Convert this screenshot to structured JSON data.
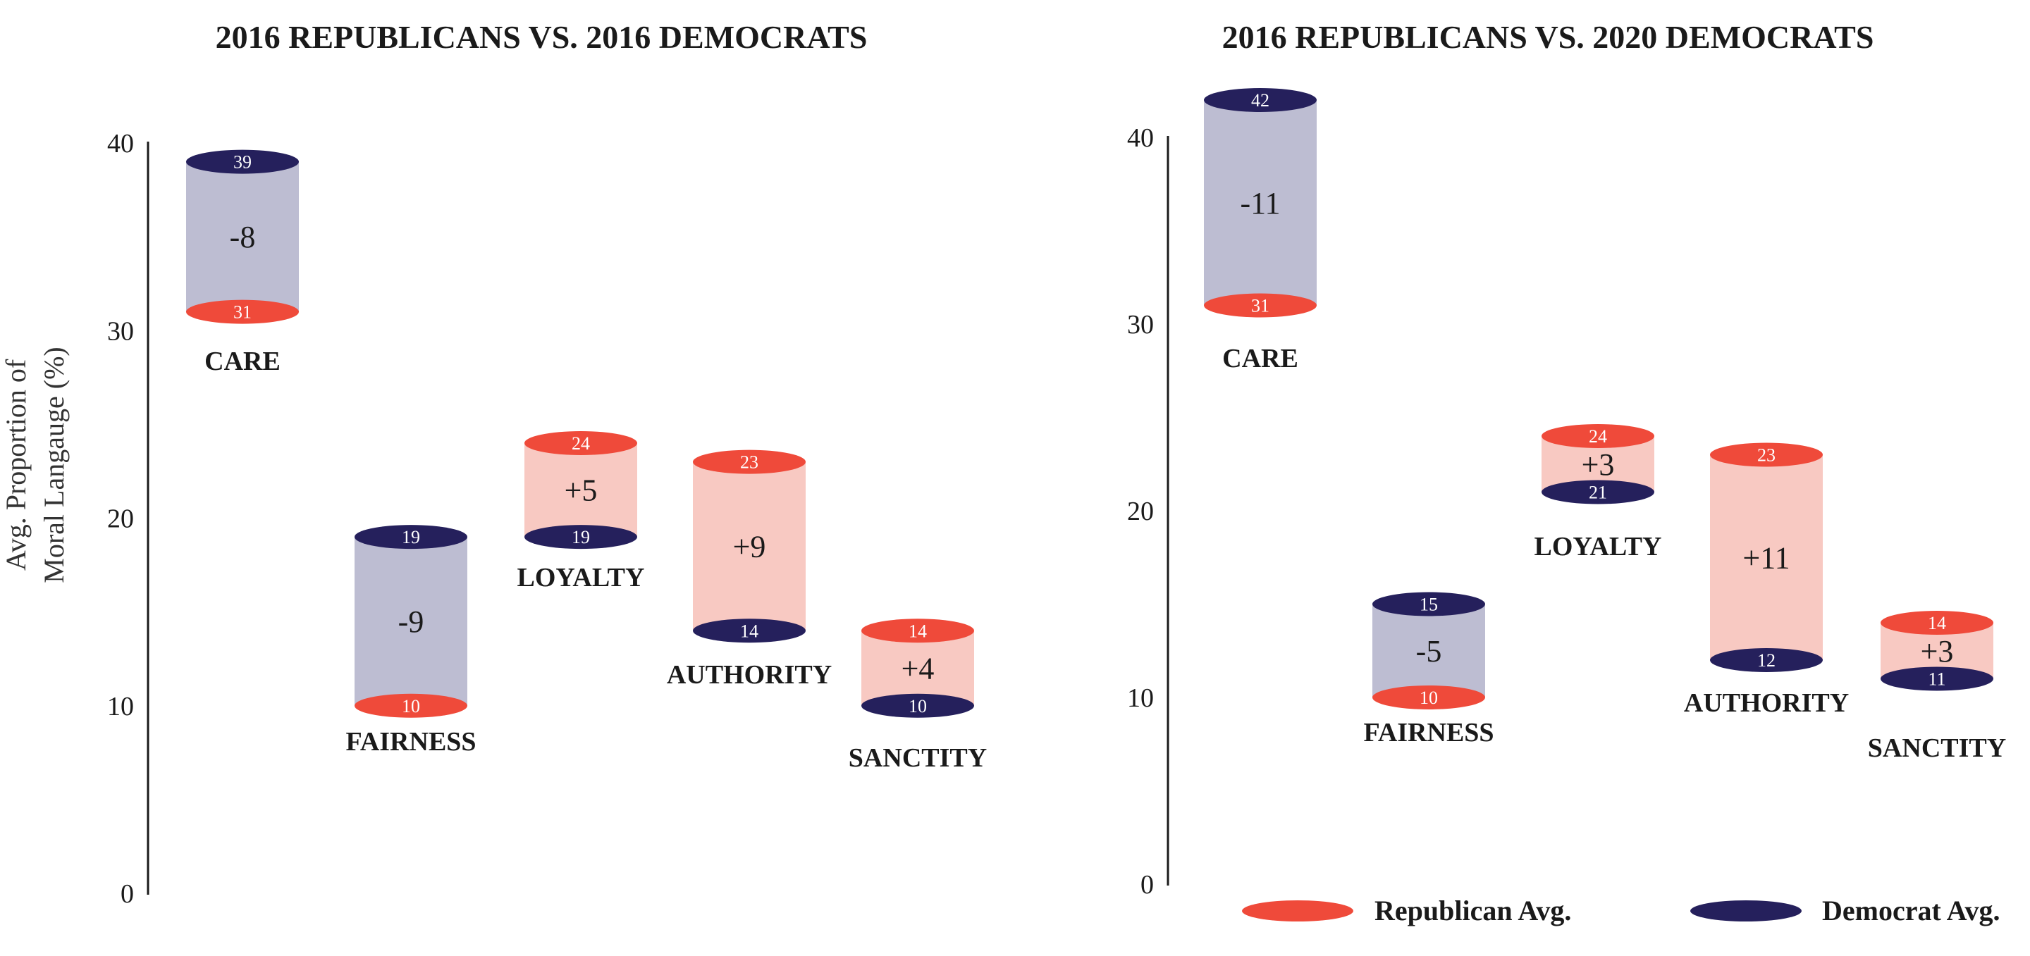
{
  "colors": {
    "republican": "#ef4a3a",
    "democrat": "#25205c",
    "body_republican_higher": "#f8c9c2",
    "body_democrat_higher": "#bdbdd2",
    "axis": "#1a1a1a"
  },
  "ylabel_lines": [
    "Avg. Proportion of",
    "Moral Langauge (%)"
  ],
  "legend": [
    {
      "label": "Republican Avg.",
      "color_key": "republican"
    },
    {
      "label": "Democrat Avg.",
      "color_key": "democrat"
    }
  ],
  "chart_data": [
    {
      "type": "floating-range",
      "title": "2016 REPUBLICANS VS. 2016 DEMOCRATS",
      "ylabel": "Avg. Proportion of Moral Langauge (%)",
      "ylim": [
        0,
        40
      ],
      "yticks": [
        0,
        10,
        20,
        30,
        40
      ],
      "categories": [
        "CARE",
        "FAIRNESS",
        "LOYALTY",
        "AUTHORITY",
        "SANCTITY"
      ],
      "series": [
        {
          "name": "Republican Avg.",
          "values": [
            31,
            10,
            24,
            23,
            14
          ]
        },
        {
          "name": "Democrat Avg.",
          "values": [
            39,
            19,
            19,
            14,
            10
          ]
        }
      ],
      "differences": [
        "-8",
        "-9",
        "+5",
        "+9",
        "+4"
      ]
    },
    {
      "type": "floating-range",
      "title": "2016 REPUBLICANS VS. 2020 DEMOCRATS",
      "ylim": [
        0,
        40
      ],
      "yticks": [
        0,
        10,
        20,
        30,
        40
      ],
      "categories": [
        "CARE",
        "FAIRNESS",
        "LOYALTY",
        "AUTHORITY",
        "SANCTITY"
      ],
      "series": [
        {
          "name": "Republican Avg.",
          "values": [
            31,
            10,
            24,
            23,
            14
          ]
        },
        {
          "name": "Democrat Avg.",
          "values": [
            42,
            15,
            21,
            12,
            11
          ]
        }
      ],
      "differences": [
        "-11",
        "-5",
        "+3",
        "+11",
        "+3"
      ]
    }
  ]
}
